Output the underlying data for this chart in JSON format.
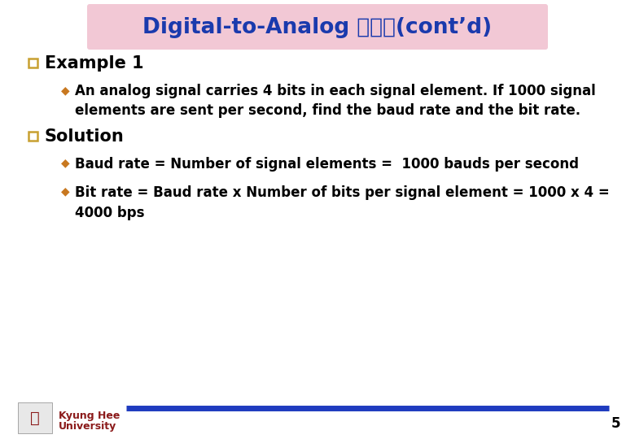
{
  "title": "Digital-to-Analog 부호화(cont’d)",
  "title_bg_color": "#f2c8d5",
  "title_text_color": "#1a3aad",
  "bg_color": "#ffffff",
  "example_label": "Example 1",
  "solution_label": "Solution",
  "bullet_color": "#c87820",
  "label_color": "#000000",
  "sq_face": "#ffffff",
  "sq_edge": "#c8a030",
  "example_bullet": "An analog signal carries 4 bits in each signal element. If 1000 signal\nelements are sent per second, find the baud rate and the bit rate.",
  "solution_bullet1": "Baud rate = Number of signal elements =  1000 bauds per second",
  "solution_bullet2_line1": "Bit rate = Baud rate x Number of bits per signal element = 1000 x 4 =",
  "solution_bullet2_line2": "4000 bps",
  "footer_line_color": "#1e3bbf",
  "footer_label1": "Kyung Hee",
  "footer_label2": "University",
  "footer_text_color": "#8b1a1a",
  "page_number": "5",
  "font_size_title": 19,
  "font_size_heading": 15,
  "font_size_body": 12,
  "font_size_footer": 9,
  "font_size_page": 12
}
